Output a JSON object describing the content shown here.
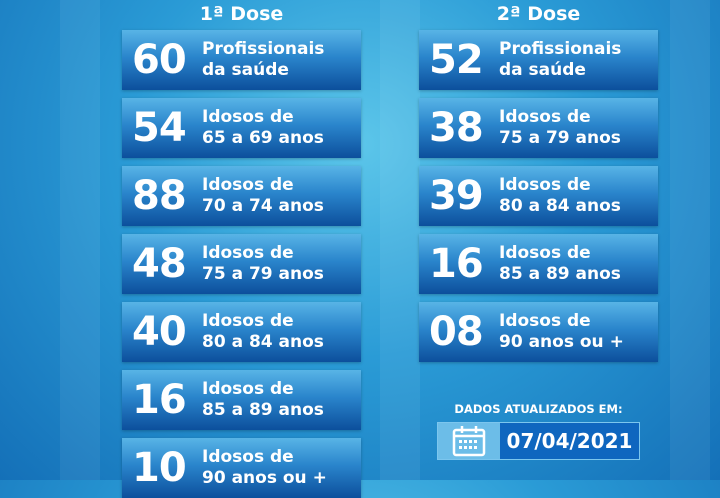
{
  "colors": {
    "card_top": "#58b4e6",
    "card_bottom": "#0c4f9c",
    "background": "#2a9bd6",
    "date_bg": "#0f66bf"
  },
  "dose1": {
    "title": "1ª Dose",
    "items": [
      {
        "value": "60",
        "line1": "Profissionais",
        "line2": "da saúde"
      },
      {
        "value": "54",
        "line1": "Idosos de",
        "line2": "65 a 69 anos"
      },
      {
        "value": "88",
        "line1": "Idosos de",
        "line2": "70 a 74 anos"
      },
      {
        "value": "48",
        "line1": "Idosos de",
        "line2": "75 a 79 anos"
      },
      {
        "value": "40",
        "line1": "Idosos de",
        "line2": "80 a 84 anos"
      },
      {
        "value": "16",
        "line1": "Idosos de",
        "line2": "85 a 89 anos"
      },
      {
        "value": "10",
        "line1": "Idosos de",
        "line2": "90 anos ou +"
      }
    ]
  },
  "dose2": {
    "title": "2ª Dose",
    "items": [
      {
        "value": "52",
        "line1": "Profissionais",
        "line2": "da saúde"
      },
      {
        "value": "38",
        "line1": "Idosos de",
        "line2": "75 a 79 anos"
      },
      {
        "value": "39",
        "line1": "Idosos de",
        "line2": "80 a 84 anos"
      },
      {
        "value": "16",
        "line1": "Idosos de",
        "line2": "85 a 89 anos"
      },
      {
        "value": "08",
        "line1": "Idosos de",
        "line2": "90 anos ou +"
      }
    ]
  },
  "updated": {
    "label": "DADOS ATUALIZADOS EM:",
    "date": "07/04/2021",
    "icon": "calendar-icon"
  }
}
